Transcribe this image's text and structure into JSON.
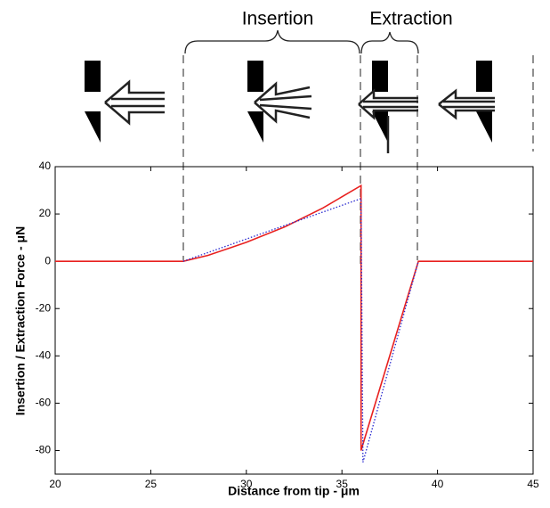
{
  "chart_data": {
    "type": "line",
    "annotations": [
      "Insertion",
      "Extraction"
    ],
    "xlabel": "Distance from tip - μm",
    "ylabel": "Insertion / Extraction Force - μN",
    "xlim": [
      20,
      45
    ],
    "ylim": [
      -90,
      40
    ],
    "xticks": [
      20,
      25,
      30,
      35,
      40,
      45
    ],
    "yticks": [
      -80,
      -60,
      -40,
      -20,
      0,
      20,
      40
    ],
    "series": [
      {
        "color": "#e8201f",
        "style": "solid",
        "x": [
          20,
          26.7,
          28,
          30,
          32,
          34,
          36,
          36,
          39,
          45
        ],
        "values": [
          0,
          0,
          2.5,
          8,
          14.5,
          22.5,
          32,
          -80,
          0,
          0
        ]
      },
      {
        "color": "#2a2ad0",
        "style": "dotted",
        "x": [
          26.7,
          36,
          36.1,
          39
        ],
        "values": [
          0,
          26.5,
          -85,
          0
        ]
      }
    ]
  }
}
